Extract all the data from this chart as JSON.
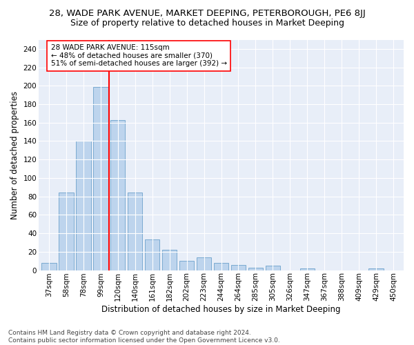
{
  "title": "28, WADE PARK AVENUE, MARKET DEEPING, PETERBOROUGH, PE6 8JJ",
  "subtitle": "Size of property relative to detached houses in Market Deeping",
  "xlabel": "Distribution of detached houses by size in Market Deeping",
  "ylabel": "Number of detached properties",
  "categories": [
    "37sqm",
    "58sqm",
    "78sqm",
    "99sqm",
    "120sqm",
    "140sqm",
    "161sqm",
    "182sqm",
    "202sqm",
    "223sqm",
    "244sqm",
    "264sqm",
    "285sqm",
    "305sqm",
    "326sqm",
    "347sqm",
    "367sqm",
    "388sqm",
    "409sqm",
    "429sqm",
    "450sqm"
  ],
  "values": [
    8,
    84,
    140,
    199,
    163,
    84,
    33,
    22,
    10,
    14,
    8,
    6,
    3,
    5,
    0,
    2,
    0,
    0,
    0,
    2,
    0
  ],
  "bar_color": "#bdd4ed",
  "bar_edge_color": "#7aaad0",
  "vline_color": "red",
  "annotation_text": "28 WADE PARK AVENUE: 115sqm\n← 48% of detached houses are smaller (370)\n51% of semi-detached houses are larger (392) →",
  "annotation_box_color": "white",
  "annotation_box_edge_color": "red",
  "ylim": [
    0,
    250
  ],
  "yticks": [
    0,
    20,
    40,
    60,
    80,
    100,
    120,
    140,
    160,
    180,
    200,
    220,
    240
  ],
  "footer": "Contains HM Land Registry data © Crown copyright and database right 2024.\nContains public sector information licensed under the Open Government Licence v3.0.",
  "background_color": "#e8eef8",
  "grid_color": "#ffffff",
  "title_fontsize": 9.5,
  "subtitle_fontsize": 9,
  "axis_label_fontsize": 8.5,
  "tick_fontsize": 7.5,
  "annotation_fontsize": 7.5,
  "footer_fontsize": 6.5,
  "vline_pos": 4.5
}
